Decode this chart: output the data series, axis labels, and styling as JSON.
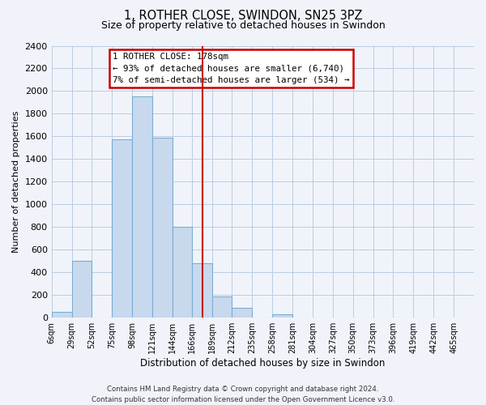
{
  "title": "1, ROTHER CLOSE, SWINDON, SN25 3PZ",
  "subtitle": "Size of property relative to detached houses in Swindon",
  "xlabel": "Distribution of detached houses by size in Swindon",
  "ylabel": "Number of detached properties",
  "bin_labels": [
    "6sqm",
    "29sqm",
    "52sqm",
    "75sqm",
    "98sqm",
    "121sqm",
    "144sqm",
    "166sqm",
    "189sqm",
    "212sqm",
    "235sqm",
    "258sqm",
    "281sqm",
    "304sqm",
    "327sqm",
    "350sqm",
    "373sqm",
    "396sqm",
    "419sqm",
    "442sqm",
    "465sqm"
  ],
  "bin_edges": [
    6,
    29,
    52,
    75,
    98,
    121,
    144,
    166,
    189,
    212,
    235,
    258,
    281,
    304,
    327,
    350,
    373,
    396,
    419,
    442,
    465
  ],
  "bar_heights": [
    50,
    500,
    0,
    1575,
    1950,
    1590,
    800,
    480,
    185,
    90,
    0,
    30,
    0,
    0,
    0,
    0,
    0,
    0,
    0,
    0
  ],
  "bar_color": "#c8d9ee",
  "bar_edge_color": "#7aadd4",
  "vline_x": 178,
  "vline_color": "#cc0000",
  "ylim": [
    0,
    2400
  ],
  "yticks": [
    0,
    200,
    400,
    600,
    800,
    1000,
    1200,
    1400,
    1600,
    1800,
    2000,
    2200,
    2400
  ],
  "annotation_title": "1 ROTHER CLOSE: 178sqm",
  "annotation_line1": "← 93% of detached houses are smaller (6,740)",
  "annotation_line2": "7% of semi-detached houses are larger (534) →",
  "annotation_box_color": "#ffffff",
  "annotation_box_edge_color": "#cc0000",
  "footer_line1": "Contains HM Land Registry data © Crown copyright and database right 2024.",
  "footer_line2": "Contains public sector information licensed under the Open Government Licence v3.0.",
  "background_color": "#f0f4fa",
  "grid_color": "#bbcce0"
}
